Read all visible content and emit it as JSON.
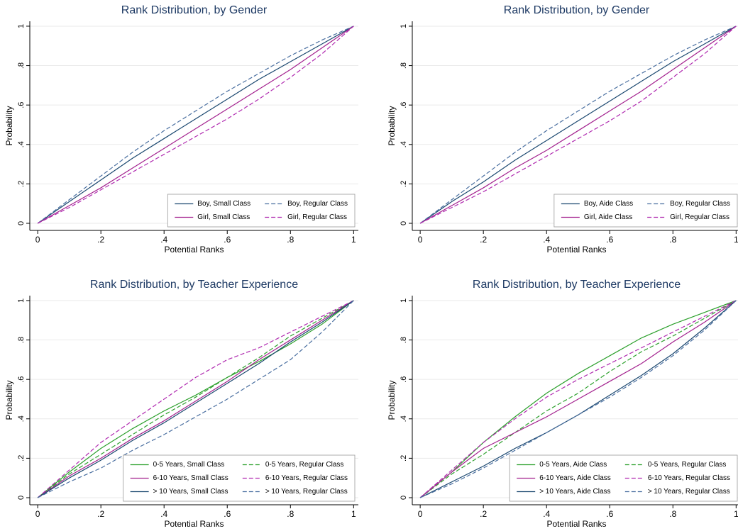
{
  "chart_data": [
    {
      "type": "line",
      "title": "Rank Distribution, by Gender",
      "xlabel": "Potential Ranks",
      "ylabel": "Probability",
      "x": [
        0,
        0.1,
        0.2,
        0.3,
        0.4,
        0.5,
        0.6,
        0.7,
        0.8,
        0.9,
        1
      ],
      "series": [
        {
          "name": "Boy, Small Class",
          "color": "#1a476f",
          "dash": false,
          "values": [
            0,
            0.11,
            0.22,
            0.33,
            0.43,
            0.53,
            0.63,
            0.73,
            0.82,
            0.91,
            1
          ]
        },
        {
          "name": "Boy, Regular Class",
          "color": "#4a6fa0",
          "dash": true,
          "values": [
            0,
            0.12,
            0.24,
            0.36,
            0.47,
            0.57,
            0.67,
            0.76,
            0.85,
            0.93,
            1
          ]
        },
        {
          "name": "Girl, Small Class",
          "color": "#a3218e",
          "dash": false,
          "values": [
            0,
            0.09,
            0.18,
            0.28,
            0.38,
            0.48,
            0.58,
            0.68,
            0.78,
            0.89,
            1
          ]
        },
        {
          "name": "Girl, Regular Class",
          "color": "#b02ab0",
          "dash": true,
          "values": [
            0,
            0.08,
            0.17,
            0.26,
            0.35,
            0.44,
            0.53,
            0.63,
            0.74,
            0.86,
            1
          ]
        }
      ],
      "xlim": [
        -0.025,
        1.015
      ],
      "ylim": [
        -0.036,
        1.025
      ],
      "xticks": [
        0,
        {
          "value": 0.2,
          "label": ".2"
        },
        {
          "value": 0.4,
          "label": ".4"
        },
        {
          "value": 0.6,
          "label": ".6"
        },
        {
          "value": 0.8,
          "label": ".8"
        },
        1
      ],
      "yticks": [
        0,
        {
          "value": 0.2,
          "label": ".2"
        },
        {
          "value": 0.4,
          "label": ".4"
        },
        {
          "value": 0.6,
          "label": ".6"
        },
        {
          "value": 0.8,
          "label": ".8"
        },
        1
      ],
      "grid": true,
      "legend": "lower right"
    },
    {
      "type": "line",
      "title": "Rank Distribution, by Gender",
      "xlabel": "Potential Ranks",
      "ylabel": "Probability",
      "x": [
        0,
        0.1,
        0.2,
        0.3,
        0.4,
        0.5,
        0.6,
        0.7,
        0.8,
        0.9,
        1
      ],
      "series": [
        {
          "name": "Boy, Aide Class",
          "color": "#1a476f",
          "dash": false,
          "values": [
            0,
            0.11,
            0.21,
            0.32,
            0.42,
            0.52,
            0.62,
            0.72,
            0.82,
            0.91,
            1
          ]
        },
        {
          "name": "Boy, Regular Class",
          "color": "#4a6fa0",
          "dash": true,
          "values": [
            0,
            0.12,
            0.24,
            0.36,
            0.47,
            0.57,
            0.67,
            0.76,
            0.85,
            0.93,
            1
          ]
        },
        {
          "name": "Girl, Aide Class",
          "color": "#a3218e",
          "dash": false,
          "values": [
            0,
            0.09,
            0.18,
            0.28,
            0.37,
            0.47,
            0.57,
            0.67,
            0.78,
            0.89,
            1
          ]
        },
        {
          "name": "Girl, Regular Class",
          "color": "#b02ab0",
          "dash": true,
          "values": [
            0,
            0.08,
            0.16,
            0.25,
            0.34,
            0.43,
            0.52,
            0.62,
            0.74,
            0.86,
            1
          ]
        }
      ],
      "xlim": [
        -0.025,
        1.015
      ],
      "ylim": [
        -0.036,
        1.025
      ],
      "xticks": [
        0,
        {
          "value": 0.2,
          "label": ".2"
        },
        {
          "value": 0.4,
          "label": ".4"
        },
        {
          "value": 0.6,
          "label": ".6"
        },
        {
          "value": 0.8,
          "label": ".8"
        },
        1
      ],
      "yticks": [
        0,
        {
          "value": 0.2,
          "label": ".2"
        },
        {
          "value": 0.4,
          "label": ".4"
        },
        {
          "value": 0.6,
          "label": ".6"
        },
        {
          "value": 0.8,
          "label": ".8"
        },
        1
      ],
      "grid": true,
      "legend": "lower right"
    },
    {
      "type": "line",
      "title": "Rank Distribution, by Teacher Experience",
      "xlabel": "Potential Ranks",
      "ylabel": "Probability",
      "x": [
        0,
        0.1,
        0.2,
        0.3,
        0.4,
        0.5,
        0.6,
        0.7,
        0.8,
        0.9,
        1
      ],
      "series": [
        {
          "name": "0-5 Years, Small Class",
          "color": "#2ca02c",
          "dash": false,
          "values": [
            0,
            0.13,
            0.25,
            0.35,
            0.44,
            0.52,
            0.61,
            0.69,
            0.78,
            0.88,
            1
          ]
        },
        {
          "name": "0-5 Years, Regular Class",
          "color": "#2ca02c",
          "dash": true,
          "values": [
            0,
            0.12,
            0.22,
            0.32,
            0.42,
            0.51,
            0.61,
            0.71,
            0.82,
            0.91,
            1
          ]
        },
        {
          "name": "6-10 Years, Small Class",
          "color": "#a3218e",
          "dash": false,
          "values": [
            0,
            0.11,
            0.2,
            0.3,
            0.39,
            0.49,
            0.59,
            0.7,
            0.8,
            0.9,
            1
          ]
        },
        {
          "name": "6-10 Years, Regular Class",
          "color": "#b02ab0",
          "dash": true,
          "values": [
            0,
            0.14,
            0.28,
            0.39,
            0.5,
            0.61,
            0.7,
            0.76,
            0.84,
            0.92,
            1
          ]
        },
        {
          "name": "> 10 Years, Small Class",
          "color": "#1a476f",
          "dash": false,
          "values": [
            0,
            0.1,
            0.19,
            0.29,
            0.38,
            0.48,
            0.58,
            0.68,
            0.79,
            0.89,
            1
          ]
        },
        {
          "name": "> 10 Years, Regular Class",
          "color": "#4a6fa0",
          "dash": true,
          "values": [
            0,
            0.08,
            0.15,
            0.24,
            0.32,
            0.41,
            0.5,
            0.6,
            0.7,
            0.84,
            1
          ]
        }
      ],
      "xlim": [
        -0.025,
        1.015
      ],
      "ylim": [
        -0.036,
        1.025
      ],
      "xticks": [
        0,
        {
          "value": 0.2,
          "label": ".2"
        },
        {
          "value": 0.4,
          "label": ".4"
        },
        {
          "value": 0.6,
          "label": ".6"
        },
        {
          "value": 0.8,
          "label": ".8"
        },
        1
      ],
      "yticks": [
        0,
        {
          "value": 0.2,
          "label": ".2"
        },
        {
          "value": 0.4,
          "label": ".4"
        },
        {
          "value": 0.6,
          "label": ".6"
        },
        {
          "value": 0.8,
          "label": ".8"
        },
        1
      ],
      "grid": true,
      "legend": "lower right"
    },
    {
      "type": "line",
      "title": "Rank Distribution, by Teacher Experience",
      "xlabel": "Potential Ranks",
      "ylabel": "Probability",
      "x": [
        0,
        0.1,
        0.2,
        0.3,
        0.4,
        0.5,
        0.6,
        0.7,
        0.8,
        0.9,
        1
      ],
      "series": [
        {
          "name": "0-5 Years, Aide Class",
          "color": "#2ca02c",
          "dash": false,
          "values": [
            0,
            0.13,
            0.28,
            0.41,
            0.53,
            0.63,
            0.72,
            0.81,
            0.88,
            0.94,
            1
          ]
        },
        {
          "name": "0-5 Years, Regular Class",
          "color": "#2ca02c",
          "dash": true,
          "values": [
            0,
            0.12,
            0.22,
            0.33,
            0.44,
            0.53,
            0.64,
            0.74,
            0.82,
            0.91,
            1
          ]
        },
        {
          "name": "6-10 Years, Aide Class",
          "color": "#a3218e",
          "dash": false,
          "values": [
            0,
            0.13,
            0.25,
            0.33,
            0.41,
            0.5,
            0.59,
            0.68,
            0.79,
            0.89,
            1
          ]
        },
        {
          "name": "6-10 Years, Regular Class",
          "color": "#b02ab0",
          "dash": true,
          "values": [
            0,
            0.14,
            0.28,
            0.4,
            0.51,
            0.6,
            0.68,
            0.76,
            0.84,
            0.92,
            1
          ]
        },
        {
          "name": "> 10 Years, Aide Class",
          "color": "#1a476f",
          "dash": false,
          "values": [
            0,
            0.08,
            0.16,
            0.25,
            0.33,
            0.42,
            0.52,
            0.62,
            0.73,
            0.86,
            1
          ]
        },
        {
          "name": "> 10 Years, Regular Class",
          "color": "#4a6fa0",
          "dash": true,
          "values": [
            0,
            0.07,
            0.15,
            0.24,
            0.33,
            0.42,
            0.51,
            0.61,
            0.72,
            0.85,
            1
          ]
        }
      ],
      "xlim": [
        -0.025,
        1.015
      ],
      "ylim": [
        -0.036,
        1.025
      ],
      "xticks": [
        0,
        {
          "value": 0.2,
          "label": ".2"
        },
        {
          "value": 0.4,
          "label": ".4"
        },
        {
          "value": 0.6,
          "label": ".6"
        },
        {
          "value": 0.8,
          "label": ".8"
        },
        1
      ],
      "yticks": [
        0,
        {
          "value": 0.2,
          "label": ".2"
        },
        {
          "value": 0.4,
          "label": ".4"
        },
        {
          "value": 0.6,
          "label": ".6"
        },
        {
          "value": 0.8,
          "label": ".8"
        },
        1
      ],
      "grid": true,
      "legend": "lower right"
    }
  ]
}
